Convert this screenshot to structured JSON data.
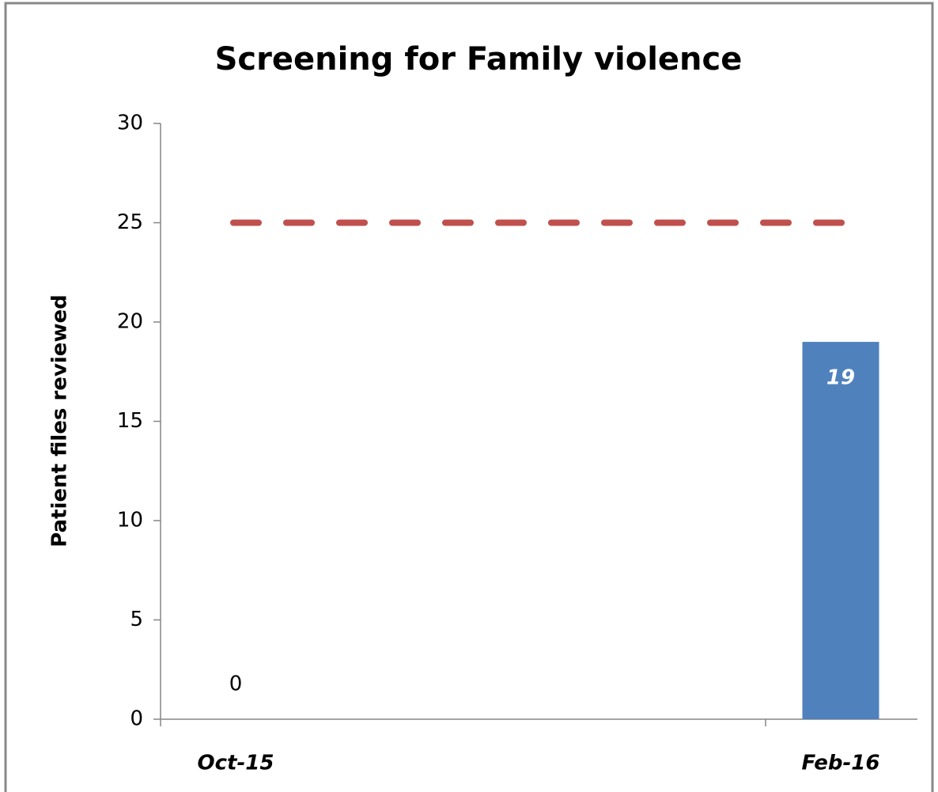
{
  "chart_data": {
    "type": "bar",
    "title": "Screening for Family violence",
    "y_label": "Patient  files  reviewed",
    "categories": [
      "Oct-15",
      "Feb-16"
    ],
    "values": [
      0,
      19
    ],
    "color": "#4f81bd",
    "ylim": [
      0,
      30
    ],
    "yticks": [
      0,
      5,
      10,
      15,
      20,
      25,
      30
    ],
    "reference_line": {
      "value": 25,
      "color": "#c0504d"
    }
  }
}
